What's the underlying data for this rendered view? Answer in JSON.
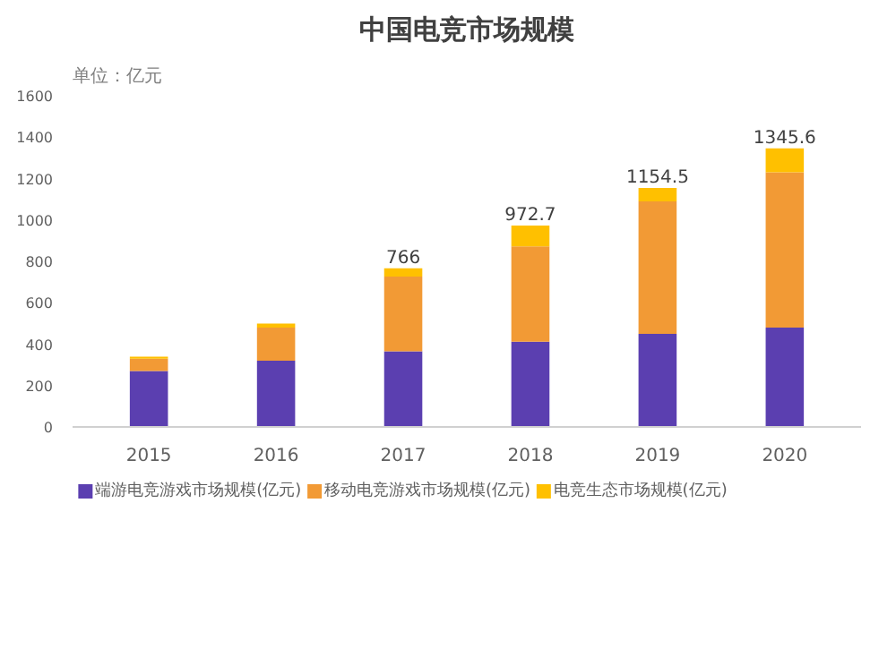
{
  "chart_data": {
    "type": "bar",
    "title": "中国电竞市场规模",
    "ylabel": "单位：亿元",
    "categories": [
      "2015",
      "2016",
      "2017",
      "2018",
      "2019",
      "2020"
    ],
    "stacked": true,
    "series": [
      {
        "name": "端游电竞游戏市场规模(亿元)",
        "color": "#5b3fb0",
        "values": [
          270,
          320,
          365,
          412,
          450,
          480
        ]
      },
      {
        "name": "移动电竞游戏市场规模(亿元)",
        "color": "#f29a35",
        "values": [
          60,
          160,
          361,
          460.7,
          639.5,
          750.6
        ]
      },
      {
        "name": "电竞生态市场规模(亿元)",
        "color": "#ffc000",
        "values": [
          10,
          20,
          40,
          100,
          65,
          115
        ]
      }
    ],
    "totals": [
      null,
      null,
      "766",
      "972.7",
      "1154.5",
      "1345.6"
    ],
    "ylim": [
      0,
      1600
    ],
    "yticks": [
      0,
      200,
      400,
      600,
      800,
      1000,
      1200,
      1400,
      1600
    ],
    "grid": false,
    "legend": "bottom"
  }
}
